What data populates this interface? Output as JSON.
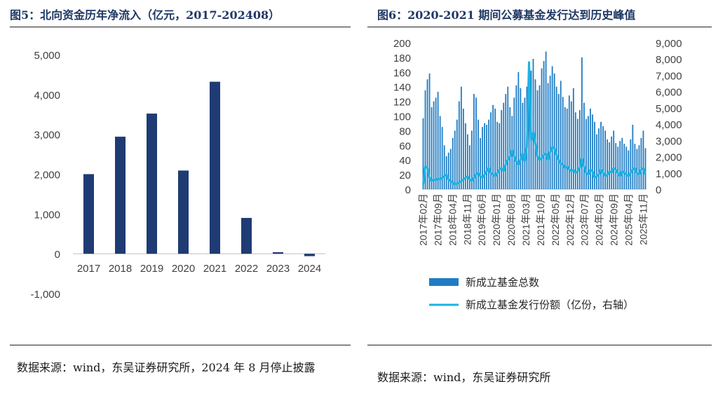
{
  "left": {
    "title": "图5：北向资金历年净流入（亿元，2017-202408）",
    "source": "数据来源：wind，东吴证券研究所，2024 年 8 月停止披露"
  },
  "right": {
    "title": "图6：2020-2021 期间公募基金发行达到历史峰值",
    "source": "数据来源：wind，东吴证券研究所"
  },
  "chart_data": [
    {
      "type": "bar",
      "title": "北向资金历年净流入（亿元，2017-202408）",
      "categories": [
        "2017",
        "2018",
        "2019",
        "2020",
        "2021",
        "2022",
        "2023",
        "2024"
      ],
      "values": [
        2000,
        2940,
        3520,
        2090,
        4320,
        900,
        40,
        -60
      ],
      "ylim": [
        -1000,
        5000
      ],
      "yticks": [
        -1000,
        0,
        1000,
        2000,
        3000,
        4000,
        5000
      ],
      "ytick_labels": [
        "-1,000",
        "0",
        "1,000",
        "2,000",
        "3,000",
        "4,000",
        "5,000"
      ],
      "color": "#1f3b73",
      "xlabel": "",
      "ylabel": ""
    },
    {
      "type": "bar+line",
      "title": "2020-2021 期间公募基金发行达到历史峰值",
      "x_labels": [
        "2017年02月",
        "2017年09月",
        "2018年04月",
        "2018年11月",
        "2019年06月",
        "2020年01月",
        "2020年08月",
        "2021年03月",
        "2021年10月",
        "2022年05月",
        "2022年12月",
        "2023年07月",
        "2024年02月",
        "2024年09月",
        "2025年04月",
        "2025年11月"
      ],
      "months_total": 106,
      "y_left": {
        "range": [
          0,
          200
        ],
        "ticks": [
          0,
          20,
          40,
          60,
          80,
          100,
          120,
          140,
          160,
          180,
          200
        ]
      },
      "y_right": {
        "range": [
          0,
          9000
        ],
        "ticks": [
          0,
          1000,
          2000,
          3000,
          4000,
          5000,
          6000,
          7000,
          8000,
          9000
        ],
        "tick_labels": [
          "0",
          "1,000",
          "2,000",
          "3,000",
          "4,000",
          "5,000",
          "6,000",
          "7,000",
          "8,000",
          "9,000"
        ]
      },
      "series": [
        {
          "name": "新成立基金总数",
          "axis": "left",
          "kind": "bar",
          "color": "#1f7cc4",
          "values": [
            97,
            135,
            150,
            158,
            112,
            120,
            125,
            133,
            100,
            85,
            60,
            45,
            50,
            55,
            70,
            80,
            95,
            120,
            140,
            110,
            90,
            75,
            60,
            80,
            130,
            125,
            95,
            70,
            85,
            90,
            88,
            95,
            105,
            115,
            110,
            92,
            90,
            108,
            118,
            130,
            140,
            112,
            100,
            125,
            142,
            160,
            138,
            118,
            125,
            140,
            155,
            162,
            178,
            150,
            135,
            142,
            165,
            175,
            188,
            145,
            155,
            168,
            158,
            140,
            130,
            148,
            126,
            112,
            110,
            128,
            120,
            138,
            105,
            96,
            108,
            180,
            118,
            96,
            100,
            110,
            102,
            92,
            75,
            83,
            92,
            86,
            80,
            68,
            64,
            72,
            80,
            63,
            58,
            66,
            70,
            62,
            58,
            53,
            68,
            88,
            62,
            55,
            60,
            70,
            80,
            56
          ]
        },
        {
          "name": "新成立基金发行份额（亿份，右轴）",
          "axis": "right",
          "kind": "line",
          "color": "#19b4e6",
          "values": [
            300,
            1400,
            1300,
            700,
            500,
            600,
            550,
            650,
            600,
            700,
            800,
            900,
            600,
            500,
            400,
            300,
            350,
            400,
            500,
            600,
            700,
            800,
            600,
            500,
            700,
            900,
            1000,
            800,
            700,
            900,
            1100,
            1300,
            1000,
            900,
            800,
            1000,
            1200,
            1300,
            1100,
            1500,
            1800,
            2000,
            2400,
            2000,
            1700,
            1500,
            1800,
            2200,
            1700,
            2600,
            7800,
            3000,
            3500,
            2800,
            2000,
            1800,
            1900,
            2100,
            2200,
            1800,
            2300,
            2600,
            2500,
            2100,
            1800,
            1600,
            1500,
            1300,
            1400,
            1200,
            1100,
            1200,
            1000,
            1100,
            1300,
            1900,
            1400,
            1000,
            900,
            1200,
            1100,
            700,
            800,
            900,
            1200,
            1000,
            800,
            900,
            1100,
            1000,
            1300,
            1200,
            1000,
            800,
            1100,
            1000,
            900,
            800,
            1000,
            1200,
            1300,
            1000,
            900,
            1200,
            1300,
            900
          ]
        }
      ]
    }
  ]
}
